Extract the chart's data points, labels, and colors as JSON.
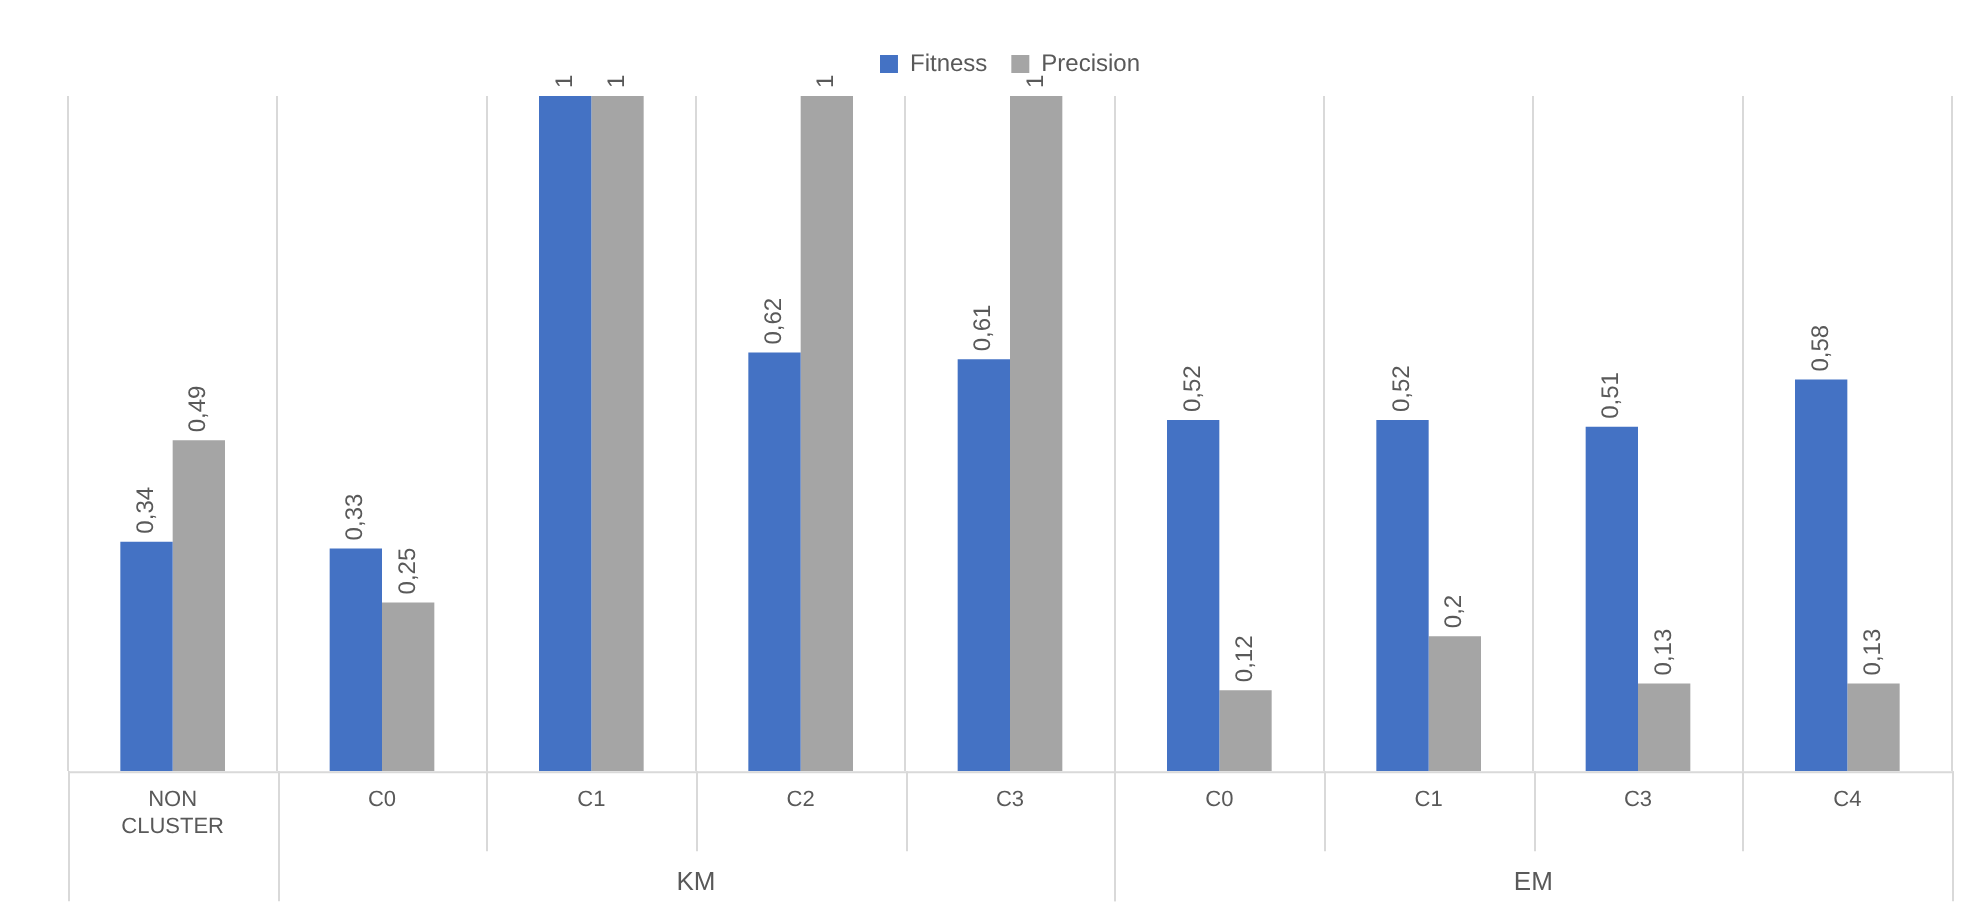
{
  "chart_data": {
    "type": "bar",
    "categories": [
      "NON CLUSTER",
      "C0",
      "C1",
      "C2",
      "C3",
      "C0",
      "C1",
      "C3",
      "C4"
    ],
    "series": [
      {
        "name": "Fitness",
        "color": "#4472c4",
        "values": [
          0.34,
          0.33,
          1,
          0.62,
          0.61,
          0.52,
          0.52,
          0.51,
          0.58
        ],
        "value_labels": [
          "0,34",
          "0,33",
          "1",
          "0,62",
          "0,61",
          "0,52",
          "0,52",
          "0,51",
          "0,58"
        ]
      },
      {
        "name": "Precision",
        "color": "#a5a5a5",
        "values": [
          0.49,
          0.25,
          1,
          1,
          1,
          0.12,
          0.2,
          0.13,
          0.13
        ],
        "value_labels": [
          "0,49",
          "0,25",
          "1",
          "1",
          "1",
          "0,12",
          "0,2",
          "0,13",
          "0,13"
        ]
      }
    ],
    "ylim": [
      0,
      1
    ],
    "tick_labels": "x",
    "grid": "x",
    "legend": "top",
    "annotations": [
      "KM",
      "EM"
    ]
  }
}
